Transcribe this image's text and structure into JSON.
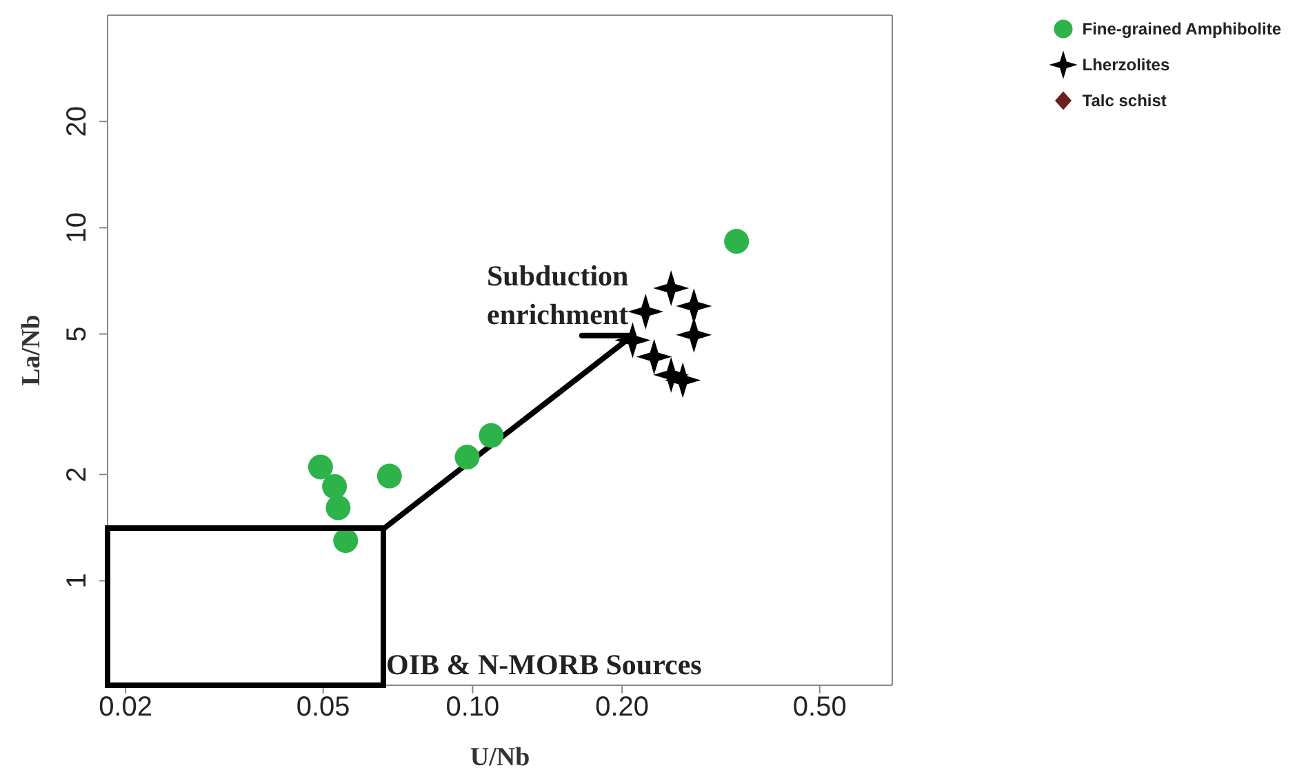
{
  "chart_data": {
    "type": "scatter",
    "xlabel": "U/Nb",
    "ylabel": "La/Nb",
    "log": "xy",
    "xlim": [
      0.0184,
      0.7
    ],
    "ylim": [
      0.506,
      40
    ],
    "xticks": [
      0.02,
      0.05,
      {
        "value": 0.1,
        "label": "0.10"
      },
      {
        "value": 0.2,
        "label": "0.20"
      },
      {
        "value": 0.5,
        "label": "0.50"
      }
    ],
    "yticks": [
      1,
      2,
      5,
      10,
      20
    ],
    "legend": "top right",
    "annotations": [
      "Subduction enrichment",
      "OIB & N-MORB Sources"
    ],
    "series": [
      {
        "type": "line",
        "color": "#000000",
        "x": [
          0.0343,
          0.0664,
          0.21
        ],
        "values": [
          1.41,
          1.41,
          4.95
        ]
      },
      {
        "type": "line",
        "color": "#000000",
        "x": [
          0.166,
          0.21
        ],
        "values": [
          4.95,
          4.95
        ]
      },
      {
        "name": "Fine-grained Amphibolite",
        "color": "#2db34a",
        "marker": "circle",
        "x": [
          0.0494,
          0.0527,
          0.0536,
          0.0555,
          0.068,
          0.0975,
          0.109,
          0.34
        ],
        "values": [
          2.1,
          1.85,
          1.61,
          1.3,
          1.98,
          2.24,
          2.58,
          9.15
        ]
      },
      {
        "name": "Lherzolites",
        "color": "#000000",
        "marker": "star",
        "x": [
          0.21,
          0.223,
          0.251,
          0.279,
          0.279,
          0.232,
          0.251,
          0.265
        ],
        "values": [
          4.8,
          5.79,
          6.74,
          6.0,
          4.97,
          4.31,
          3.83,
          3.7
        ]
      },
      {
        "name": "Talc schist",
        "color": "#6b1f1f",
        "marker": "diamond"
      }
    ]
  }
}
